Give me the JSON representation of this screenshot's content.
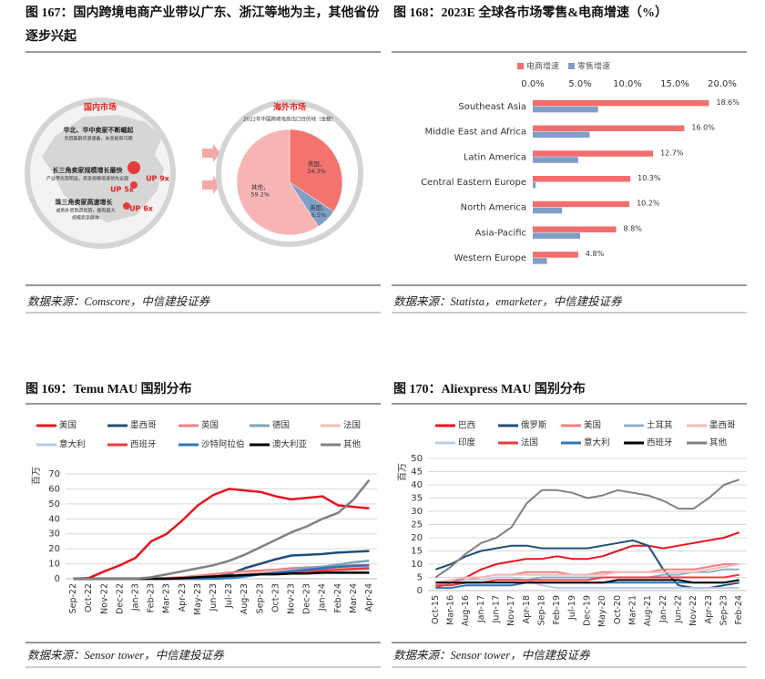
{
  "figures": [
    {
      "title": "图 167：国内跨境电商产业带以广东、浙江等地为主，其他省份逐步兴起",
      "source": "数据来源：Comscore，中信建投证券"
    },
    {
      "title": "图 168：2023E 全球各市场零售&电商增速（%）",
      "source": "数据来源：Statista，emarketer，中信建投证券"
    },
    {
      "title": "图 169：Temu MAU 国别分布",
      "source": "数据来源：Sensor tower，中信建投证券"
    },
    {
      "title": "图 170：Aliexpress MAU 国别分布",
      "source": "数据来源：Sensor tower，中信建投证券"
    }
  ],
  "diagram": {
    "domestic": {
      "title": "国内市场",
      "regions": [
        {
          "label": "华北、华中卖家不断崛起",
          "notes": [
            "凭借集群货源储备，未来前景可期"
          ]
        },
        {
          "label": "长三角卖家规模增长最快",
          "notes": [
            "产业带优势明显，卖家规模增速领先全国"
          ]
        },
        {
          "label": "珠三角卖家高速增长",
          "notes": [
            "成熟外贸制造优势，拥有最大",
            "规模卖家群体"
          ]
        }
      ],
      "growth": [
        "UP 9x",
        "UP 5x",
        "UP 6x"
      ]
    },
    "overseas": {
      "title": "海外市场"
    }
  },
  "chart_data": [
    {
      "type": "pie",
      "title": "2022年中国跨境电商出口目的地（金额）",
      "categories": [
        "美国，",
        "英国，",
        "其他，"
      ],
      "values": [
        34.3,
        6.5,
        59.2
      ],
      "value_labels": [
        "34.3%",
        "6.5%",
        "59.2%"
      ],
      "colors": [
        "#f4736f",
        "#7f9fc6",
        "#f8b4b4"
      ]
    },
    {
      "type": "hbar",
      "legend": "top",
      "categories": [
        "Southeast Asia",
        "Middle East and Africa",
        "Latin America",
        "Central Eastern Europe",
        "North America",
        "Asia-Pacific",
        "Western Europe"
      ],
      "series": [
        {
          "name": "电商增速",
          "color": "#f26d6d",
          "values": [
            18.6,
            16.0,
            12.7,
            10.3,
            10.2,
            8.8,
            4.8
          ],
          "value_labels": [
            "18.6%",
            "16.0%",
            "12.7%",
            "10.3%",
            "10.2%",
            "8.8%",
            "4.8%"
          ]
        },
        {
          "name": "零售增速",
          "color": "#7f9fc8",
          "values": [
            6.9,
            6.0,
            4.8,
            0.3,
            3.1,
            5.0,
            1.5
          ]
        }
      ],
      "xlim": [
        0,
        20
      ],
      "xticks": [
        {
          "value": 0,
          "label": "0.0%"
        },
        {
          "value": 5,
          "label": "5.0%"
        },
        {
          "value": 10,
          "label": "10.0%"
        },
        {
          "value": 15,
          "label": "15.0%"
        },
        {
          "value": 20,
          "label": "20.0%"
        }
      ]
    },
    {
      "type": "line",
      "legend": "top",
      "grid": true,
      "ylabel": "百万",
      "categories": [
        "Sep-22",
        "Oct-22",
        "Nov-22",
        "Dec-22",
        "Jan-23",
        "Feb-23",
        "Mar-23",
        "Apr-23",
        "May-23",
        "Jun-23",
        "Jul-23",
        "Aug-23",
        "Sep-23",
        "Oct-23",
        "Nov-23",
        "Dec-23",
        "Jan-24",
        "Feb-24",
        "Mar-24",
        "Apr-24"
      ],
      "series": [
        {
          "name": "美国",
          "color": "#e8141c",
          "values": [
            0,
            0.5,
            5,
            9,
            14,
            25,
            30,
            39,
            49,
            56,
            60,
            59,
            58,
            55,
            53,
            54,
            55,
            49,
            48,
            47
          ]
        },
        {
          "name": "墨西哥",
          "color": "#1f4e79",
          "values": [
            0,
            0,
            0,
            0,
            0,
            0,
            0,
            0,
            0.5,
            1,
            3,
            7,
            10,
            13,
            15.5,
            16,
            16.5,
            17.5,
            18,
            18.5
          ]
        },
        {
          "name": "英国",
          "color": "#f08080",
          "values": [
            0,
            0,
            0,
            0,
            0,
            0,
            0.5,
            1,
            2,
            3,
            4,
            5,
            5.5,
            6,
            7,
            7.5,
            8,
            8.5,
            9,
            9
          ]
        },
        {
          "name": "德国",
          "color": "#7fa3bd",
          "values": [
            0,
            0,
            0,
            0,
            0,
            0,
            0,
            0,
            0.5,
            1,
            2,
            3,
            4,
            5,
            6,
            7,
            8,
            9.5,
            11,
            12
          ]
        },
        {
          "name": "法国",
          "color": "#f7b9b9",
          "values": [
            0,
            0,
            0,
            0,
            0,
            0,
            0,
            0,
            0.5,
            1,
            2,
            3,
            4,
            5,
            5.5,
            6,
            6.5,
            7,
            7.5,
            8
          ]
        },
        {
          "name": "意大利",
          "color": "#b8cce4",
          "values": [
            0,
            0,
            0,
            0,
            0,
            0,
            0,
            0,
            0,
            0.5,
            1,
            2,
            3,
            3.5,
            4,
            4.5,
            5,
            5.5,
            6,
            6
          ]
        },
        {
          "name": "西班牙",
          "color": "#ee3b3b",
          "values": [
            0,
            0,
            0,
            0,
            0,
            0,
            0,
            0,
            0,
            0.5,
            1,
            2,
            3,
            4,
            4.5,
            5,
            5.5,
            6,
            6.5,
            7
          ]
        },
        {
          "name": "沙特阿拉伯",
          "color": "#2e75b6",
          "values": [
            0,
            0,
            0,
            0,
            0,
            0,
            0,
            0,
            0,
            0,
            0.5,
            1.5,
            3,
            4,
            5,
            6,
            7,
            8,
            8.5,
            9
          ]
        },
        {
          "name": "澳大利亚",
          "color": "#000000",
          "values": [
            0,
            0,
            0,
            0,
            0,
            0,
            0,
            0.5,
            1,
            1.5,
            2,
            2.5,
            3,
            3,
            3.5,
            3.5,
            4,
            4,
            4,
            4
          ]
        },
        {
          "name": "其他",
          "color": "#808080",
          "values": [
            0,
            0,
            0,
            0,
            0,
            1,
            3,
            5,
            7,
            9,
            12,
            16,
            21,
            26,
            31,
            35,
            40,
            44,
            53,
            66
          ]
        }
      ],
      "ylim": [
        0,
        70
      ],
      "yticks": [
        0,
        10,
        20,
        30,
        40,
        50,
        60,
        70
      ]
    },
    {
      "type": "line",
      "legend": "top",
      "grid": true,
      "ylabel": "百万",
      "categories": [
        "Oct-15",
        "Mar-16",
        "Aug-16",
        "Jan-17",
        "Jun-17",
        "Nov-17",
        "Apr-18",
        "Sep-18",
        "Feb-19",
        "Jul-19",
        "Dec-19",
        "May-20",
        "Oct-20",
        "Mar-21",
        "Aug-21",
        "Jan-22",
        "Jun-22",
        "Nov-22",
        "Apr-23",
        "Sep-23",
        "Feb-24"
      ],
      "series": [
        {
          "name": "巴西",
          "color": "#e8141c",
          "values": [
            1,
            3,
            5,
            8,
            10,
            11,
            12,
            12,
            13,
            12,
            12,
            13,
            15,
            17,
            17,
            16,
            17,
            18,
            19,
            20,
            22
          ]
        },
        {
          "name": "俄罗斯",
          "color": "#1f4e79",
          "values": [
            8,
            10,
            13,
            15,
            16,
            17,
            17,
            16,
            16,
            16,
            16,
            17,
            18,
            19,
            17,
            8,
            2,
            1,
            1,
            2,
            3
          ]
        },
        {
          "name": "美国",
          "color": "#f08080",
          "values": [
            2,
            3,
            4,
            5,
            6,
            6,
            7,
            7,
            7,
            6,
            6,
            7,
            7,
            7,
            7,
            8,
            8,
            8,
            9,
            10,
            10
          ]
        },
        {
          "name": "土耳其",
          "color": "#8fb0c8",
          "values": [
            2,
            2,
            3,
            3,
            4,
            4,
            4,
            5,
            5,
            5,
            5,
            5,
            5,
            5,
            5,
            6,
            6,
            7,
            7,
            8,
            8
          ]
        },
        {
          "name": "墨西哥",
          "color": "#f7b9b9",
          "values": [
            3,
            4,
            5,
            5,
            6,
            6,
            6,
            6,
            6,
            6,
            6,
            6,
            7,
            7,
            7,
            7,
            7,
            7,
            8,
            9,
            10
          ]
        },
        {
          "name": "印度",
          "color": "#b8cce4",
          "values": [
            2,
            3,
            4,
            4,
            5,
            5,
            4,
            2,
            1,
            1,
            1,
            1,
            1,
            1,
            1,
            1,
            1,
            1,
            1,
            1,
            1
          ]
        },
        {
          "name": "法国",
          "color": "#ee3b3b",
          "values": [
            2,
            2,
            3,
            3,
            4,
            4,
            4,
            4,
            4,
            4,
            4,
            5,
            5,
            5,
            5,
            5,
            5,
            5,
            5,
            5,
            6
          ]
        },
        {
          "name": "意大利",
          "color": "#2e75b6",
          "values": [
            1,
            1,
            2,
            2,
            2,
            2,
            3,
            3,
            3,
            3,
            3,
            3,
            3,
            3,
            3,
            3,
            3,
            3,
            3,
            3,
            4
          ]
        },
        {
          "name": "西班牙",
          "color": "#000000",
          "values": [
            3,
            3,
            3,
            3,
            3,
            3,
            3,
            3,
            3,
            3,
            3,
            3,
            4,
            4,
            4,
            4,
            4,
            3,
            3,
            3,
            4
          ]
        },
        {
          "name": "其他",
          "color": "#808080",
          "values": [
            5,
            9,
            14,
            18,
            20,
            24,
            33,
            38,
            38,
            37,
            35,
            36,
            38,
            37,
            36,
            34,
            31,
            31,
            35,
            40,
            42
          ]
        }
      ],
      "ylim": [
        0,
        50
      ],
      "yticks": [
        0,
        5,
        10,
        15,
        20,
        25,
        30,
        35,
        40,
        45,
        50
      ]
    }
  ]
}
